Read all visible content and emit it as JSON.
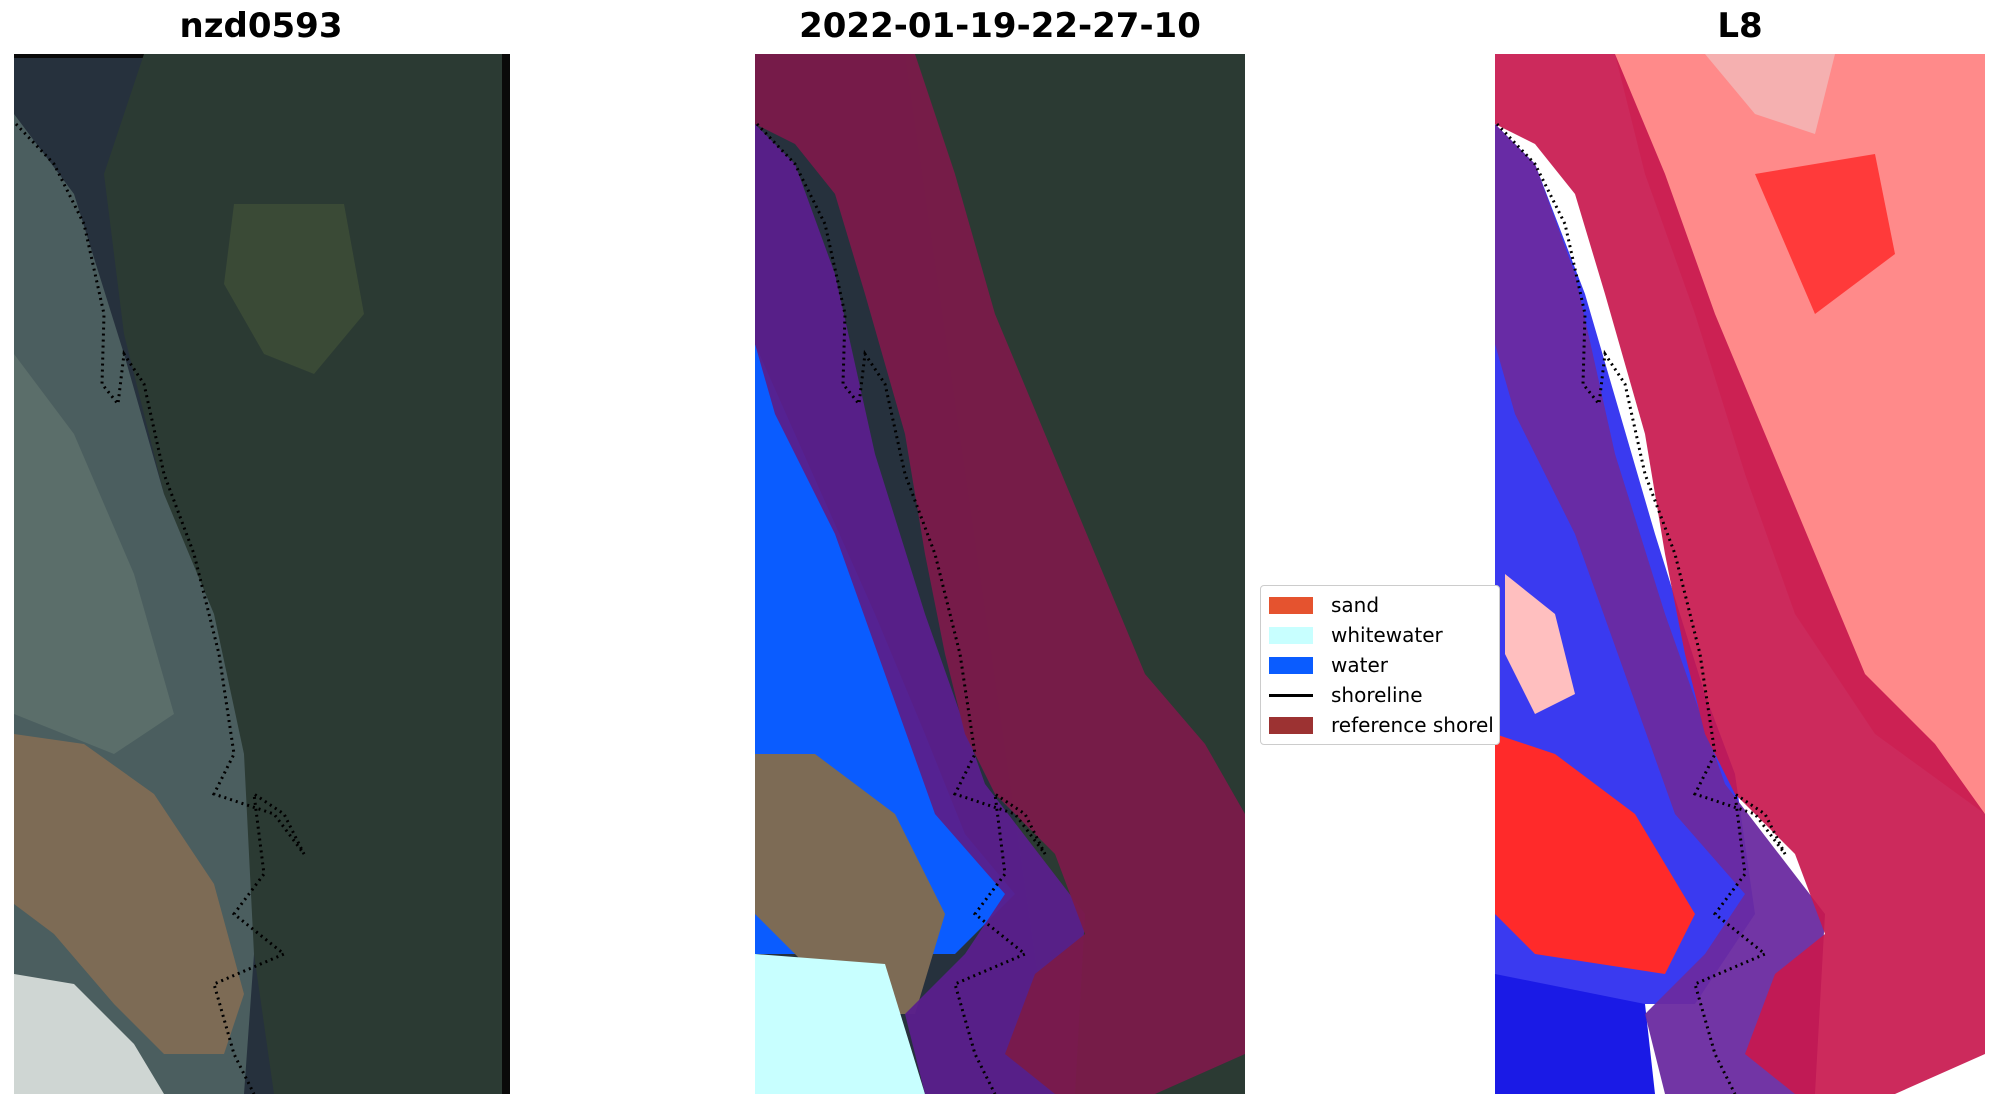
{
  "titles": {
    "left": "nzd0593",
    "center": "2022-01-19-22-27-10",
    "right": "L8"
  },
  "legend": {
    "items": [
      {
        "label": "sand",
        "color": "#E5532F",
        "kind": "patch"
      },
      {
        "label": "whitewater",
        "color": "#C8FFFF",
        "kind": "patch"
      },
      {
        "label": "water",
        "color": "#0A5CFF",
        "kind": "patch"
      },
      {
        "label": "shoreline",
        "color": "#000000",
        "kind": "line"
      },
      {
        "label": "reference shorel",
        "color": "#9C3232",
        "kind": "patch"
      }
    ]
  },
  "colors": {
    "background": "#ffffff",
    "image_dark": "#1f2a38",
    "classified_overlay": "#7a1a4a",
    "water_class": "#0a5cff",
    "index_red": "#ff2020",
    "index_blue": "#1a1ae6"
  }
}
